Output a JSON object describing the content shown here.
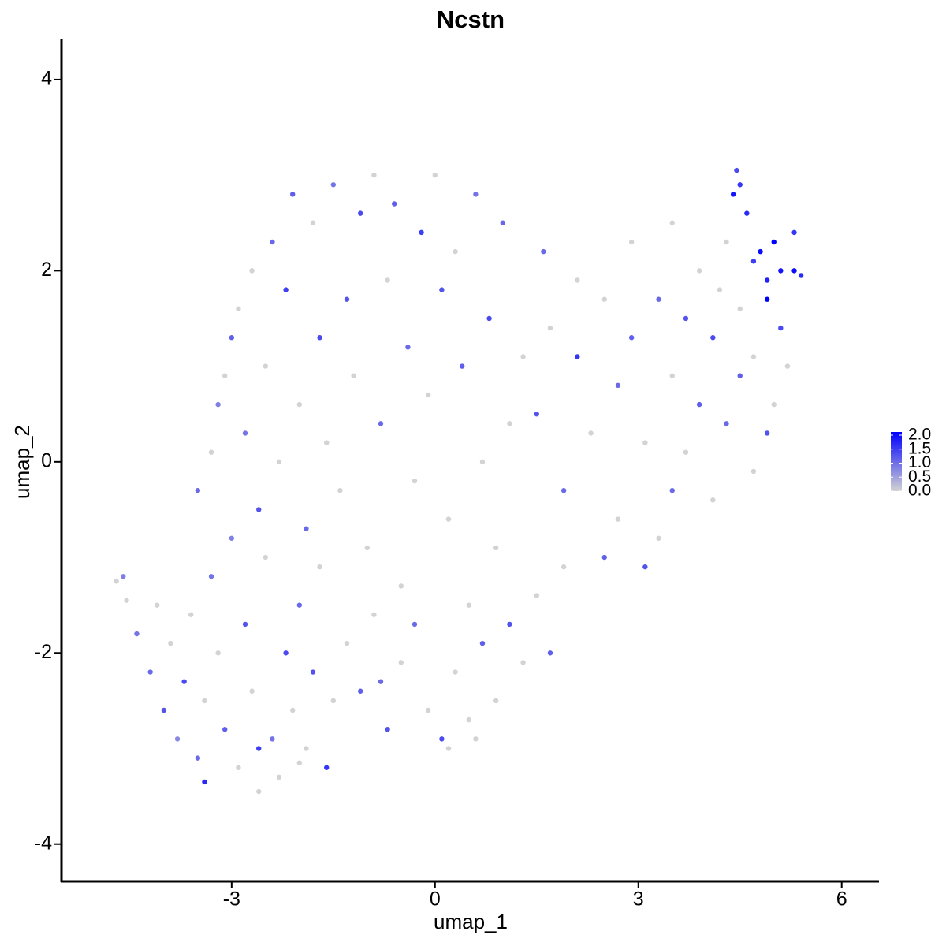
{
  "chart_data": {
    "type": "scatter",
    "title": "Ncstn",
    "x_label": "umap_1",
    "y_label": "umap_2",
    "xlim": [
      -5.51,
      6.55
    ],
    "ylim": [
      -4.39,
      4.42
    ],
    "xticks": [
      -3,
      0,
      3,
      6
    ],
    "yticks": [
      -4,
      -2,
      0,
      2,
      4
    ],
    "colors": [
      "lightgrey",
      "blue"
    ],
    "clim": [
      0,
      2.0
    ],
    "colorbar_ticks": [
      {
        "value": 0,
        "label": "0.0"
      },
      {
        "value": 0.5,
        "label": "0.5"
      },
      {
        "value": 1,
        "label": "1.0"
      },
      {
        "value": 1.5,
        "label": "1.5"
      },
      {
        "value": 2,
        "label": "2.0"
      }
    ],
    "x": [
      -4.7,
      -4.6,
      -4.55,
      -4.4,
      -4.2,
      -4.1,
      -4.0,
      -3.9,
      -3.8,
      -3.7,
      -3.6,
      -3.5,
      -3.4,
      -3.3,
      -3.2,
      -3.1,
      -3.0,
      -2.9,
      -2.8,
      -2.7,
      -2.6,
      -2.5,
      -2.4,
      -2.3,
      -2.2,
      -2.1,
      -2.0,
      -1.9,
      -1.8,
      -1.7,
      -1.6,
      -1.5,
      -2.6,
      -3.4,
      -2.0,
      -3.5,
      -3.3,
      -3.2,
      -3.1,
      -3.0,
      -2.9,
      -2.8,
      -2.7,
      -2.6,
      -2.5,
      -2.4,
      -2.3,
      -2.2,
      -2.1,
      -2.0,
      -1.9,
      -1.8,
      -1.7,
      -1.6,
      -1.5,
      -1.4,
      -1.3,
      -1.2,
      -1.1,
      -1.0,
      -0.9,
      -0.8,
      -0.7,
      -0.6,
      -0.5,
      -0.4,
      -0.3,
      -0.2,
      -0.1,
      0.0,
      0.1,
      0.2,
      0.3,
      0.4,
      0.5,
      0.6,
      0.7,
      0.8,
      0.9,
      1.0,
      1.1,
      -1.3,
      -1.1,
      -0.9,
      -0.7,
      -0.5,
      -0.3,
      -0.1,
      0.1,
      0.3,
      0.5,
      0.7,
      0.9,
      1.1,
      1.3,
      0.2,
      -0.8,
      0.6,
      1.5,
      1.7,
      1.9,
      1.3,
      1.5,
      1.7,
      1.9,
      2.1,
      2.1,
      2.3,
      2.5,
      2.5,
      2.7,
      2.7,
      2.9,
      2.9,
      3.1,
      3.1,
      3.3,
      3.3,
      3.5,
      3.5,
      3.5,
      3.7,
      3.7,
      3.9,
      3.9,
      4.1,
      4.1,
      4.3,
      4.3,
      4.5,
      4.4,
      4.5,
      4.6,
      4.7,
      4.7,
      4.8,
      4.9,
      4.9,
      5.0,
      5.1,
      5.2,
      5.3,
      5.3,
      5.0,
      4.9,
      4.7,
      5.1,
      4.5,
      4.2,
      5.4,
      4.45,
      1.6
    ],
    "y": [
      -1.25,
      -1.2,
      -1.45,
      -1.8,
      -2.2,
      -1.5,
      -2.6,
      -1.9,
      -2.9,
      -2.3,
      -1.6,
      -3.1,
      -2.5,
      -1.2,
      -2.0,
      -2.8,
      -0.8,
      -3.2,
      -1.7,
      -2.4,
      -3.0,
      -1.0,
      -2.9,
      -3.3,
      -2.0,
      -2.6,
      -1.5,
      -3.0,
      -2.2,
      -1.1,
      -3.2,
      -2.5,
      -3.45,
      -3.35,
      -3.15,
      -0.3,
      0.1,
      0.6,
      0.9,
      1.3,
      1.6,
      0.3,
      2.0,
      -0.5,
      1.0,
      2.3,
      0.0,
      1.8,
      2.8,
      0.6,
      -0.7,
      2.5,
      1.3,
      0.2,
      2.9,
      -0.3,
      1.7,
      0.9,
      2.6,
      -0.9,
      3.0,
      0.4,
      1.9,
      2.7,
      -1.3,
      1.2,
      -0.2,
      2.4,
      0.7,
      3.0,
      1.8,
      -0.6,
      2.2,
      1.0,
      -1.5,
      2.8,
      0.0,
      1.5,
      -0.9,
      2.5,
      0.4,
      -1.9,
      -2.4,
      -1.6,
      -2.8,
      -2.1,
      -1.7,
      -2.6,
      -2.9,
      -2.2,
      -2.7,
      -1.9,
      -2.5,
      -1.7,
      -2.1,
      -3.0,
      -2.3,
      -2.9,
      -1.4,
      -2.0,
      -1.1,
      1.1,
      0.5,
      1.4,
      -0.3,
      1.9,
      1.1,
      0.3,
      -1.0,
      1.7,
      0.8,
      -0.6,
      2.3,
      1.3,
      -1.1,
      0.2,
      1.7,
      -0.8,
      0.9,
      2.5,
      -0.3,
      1.5,
      0.1,
      2.0,
      0.6,
      -0.4,
      1.3,
      2.3,
      0.4,
      1.6,
      2.8,
      2.9,
      2.6,
      -0.1,
      2.1,
      2.2,
      1.9,
      1.7,
      2.3,
      2.0,
      1.0,
      2.0,
      2.4,
      0.6,
      0.3,
      1.1,
      1.4,
      0.9,
      1.8,
      1.95,
      3.05,
      2.2
    ],
    "values": [
      0,
      0.8,
      0,
      0.9,
      1.0,
      0,
      1.2,
      0,
      0.7,
      1.3,
      0,
      1.0,
      0,
      0.9,
      0,
      1.1,
      0.8,
      0,
      1.2,
      0,
      1.4,
      0,
      0.9,
      0,
      1.3,
      0,
      1.0,
      0,
      1.2,
      0,
      1.5,
      0,
      0,
      1.6,
      0,
      1.0,
      0,
      0.8,
      0,
      1.1,
      0,
      0.9,
      0,
      1.2,
      0,
      1.0,
      0,
      1.4,
      1.1,
      0,
      1.0,
      0,
      1.3,
      0,
      0.9,
      0,
      1.2,
      0,
      1.3,
      0,
      0,
      1.0,
      0,
      1.1,
      0,
      1.0,
      0,
      1.4,
      0,
      0,
      1.2,
      0,
      0,
      1.1,
      0,
      0.9,
      0,
      1.3,
      0,
      1.0,
      0,
      0,
      1.1,
      0,
      1.2,
      0,
      1.0,
      0,
      1.3,
      0,
      0,
      1.1,
      0,
      1.2,
      0,
      0,
      1.0,
      0,
      0,
      1.1,
      0,
      0,
      1.2,
      0,
      1.0,
      0,
      1.5,
      0,
      1.1,
      0,
      1.0,
      0,
      0,
      1.1,
      1.2,
      0,
      1.0,
      0,
      0,
      0,
      1.0,
      1.2,
      0,
      0,
      1.1,
      0,
      1.3,
      0,
      1.0,
      0,
      1.8,
      1.5,
      1.6,
      0,
      1.4,
      1.9,
      1.7,
      2.0,
      2.0,
      1.8,
      0,
      1.9,
      1.5,
      0,
      1.2,
      0,
      1.3,
      1.1,
      0,
      1.6,
      1.3,
      1.0
    ]
  }
}
